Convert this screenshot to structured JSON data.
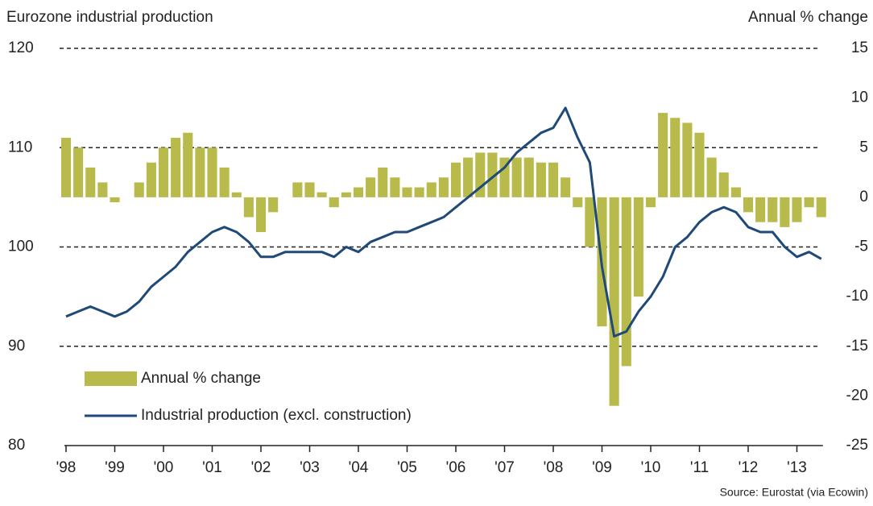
{
  "chart_data": {
    "type": "combo",
    "title": "Eurozone industrial production",
    "y2_label": "Annual % change",
    "source": "Source: Eurostat (via Ecowin)",
    "x": [
      1998,
      1998.25,
      1998.5,
      1998.75,
      1999,
      1999.25,
      1999.5,
      1999.75,
      2000,
      2000.25,
      2000.5,
      2000.75,
      2001,
      2001.25,
      2001.5,
      2001.75,
      2002,
      2002.25,
      2002.5,
      2002.75,
      2003,
      2003.25,
      2003.5,
      2003.75,
      2004,
      2004.25,
      2004.5,
      2004.75,
      2005,
      2005.25,
      2005.5,
      2005.75,
      2006,
      2006.25,
      2006.5,
      2006.75,
      2007,
      2007.25,
      2007.5,
      2007.75,
      2008,
      2008.25,
      2008.5,
      2008.75,
      2009,
      2009.25,
      2009.5,
      2009.75,
      2010,
      2010.25,
      2010.5,
      2010.75,
      2011,
      2011.25,
      2011.5,
      2011.75,
      2012,
      2012.25,
      2012.5,
      2012.75,
      2013,
      2013.25,
      2013.5
    ],
    "series": [
      {
        "name": "Annual % change",
        "type": "bar",
        "axis": "y2",
        "color": "#b8bb4c",
        "values": [
          6,
          5,
          3,
          1.5,
          -0.5,
          0,
          1.5,
          3.5,
          5,
          6,
          6.5,
          5,
          5,
          3,
          0.5,
          -2,
          -3.5,
          -1.5,
          0,
          1.5,
          1.5,
          0.5,
          -1,
          0.5,
          1,
          2,
          3,
          2,
          1,
          1,
          1.5,
          2,
          3.5,
          4,
          4.5,
          4.5,
          4,
          4,
          4,
          3.5,
          3.5,
          2,
          -1,
          -5,
          -13,
          -21,
          -17,
          -10,
          -1,
          8.5,
          8,
          7.5,
          6.5,
          4,
          2.5,
          1,
          -1.5,
          -2.5,
          -2.5,
          -3,
          -2.5,
          -1,
          -2
        ]
      },
      {
        "name": "Industrial production (excl. construction)",
        "type": "line",
        "axis": "y",
        "color": "#1f4a78",
        "values": [
          93,
          93.5,
          94,
          93.5,
          93,
          93.5,
          94.5,
          96,
          97,
          98,
          99.5,
          100.5,
          101.5,
          102,
          101.5,
          100.5,
          99,
          99,
          99.5,
          99.5,
          99.5,
          99.5,
          99,
          100,
          99.5,
          100.5,
          101,
          101.5,
          101.5,
          102,
          102.5,
          103,
          104,
          105,
          106,
          107,
          108,
          109.5,
          110.5,
          111.5,
          112,
          114,
          111,
          108.5,
          98,
          91,
          91.5,
          93.5,
          95,
          97,
          100,
          101,
          102.5,
          103.5,
          104,
          103.5,
          102,
          101.5,
          101.5,
          100,
          99,
          99.5,
          98.8
        ]
      }
    ],
    "xlim": [
      1998,
      2013.6
    ],
    "xticks": [
      {
        "value": 1998,
        "label": "'98"
      },
      {
        "value": 1999,
        "label": "'99"
      },
      {
        "value": 2000,
        "label": "'00"
      },
      {
        "value": 2001,
        "label": "'01"
      },
      {
        "value": 2002,
        "label": "'02"
      },
      {
        "value": 2003,
        "label": "'03"
      },
      {
        "value": 2004,
        "label": "'04"
      },
      {
        "value": 2005,
        "label": "'05"
      },
      {
        "value": 2006,
        "label": "'06"
      },
      {
        "value": 2007,
        "label": "'07"
      },
      {
        "value": 2008,
        "label": "'08"
      },
      {
        "value": 2009,
        "label": "'09"
      },
      {
        "value": 2010,
        "label": "'10"
      },
      {
        "value": 2011,
        "label": "'11"
      },
      {
        "value": 2012,
        "label": "'12"
      },
      {
        "value": 2013,
        "label": "'13"
      }
    ],
    "ylim": [
      80,
      120
    ],
    "yticks": [
      80,
      90,
      100,
      110,
      120
    ],
    "y2lim": [
      -25,
      15
    ],
    "y2ticks": [
      -25,
      -20,
      -15,
      -10,
      -5,
      0,
      5,
      10,
      15
    ],
    "grid": true,
    "legend": "lower left"
  }
}
